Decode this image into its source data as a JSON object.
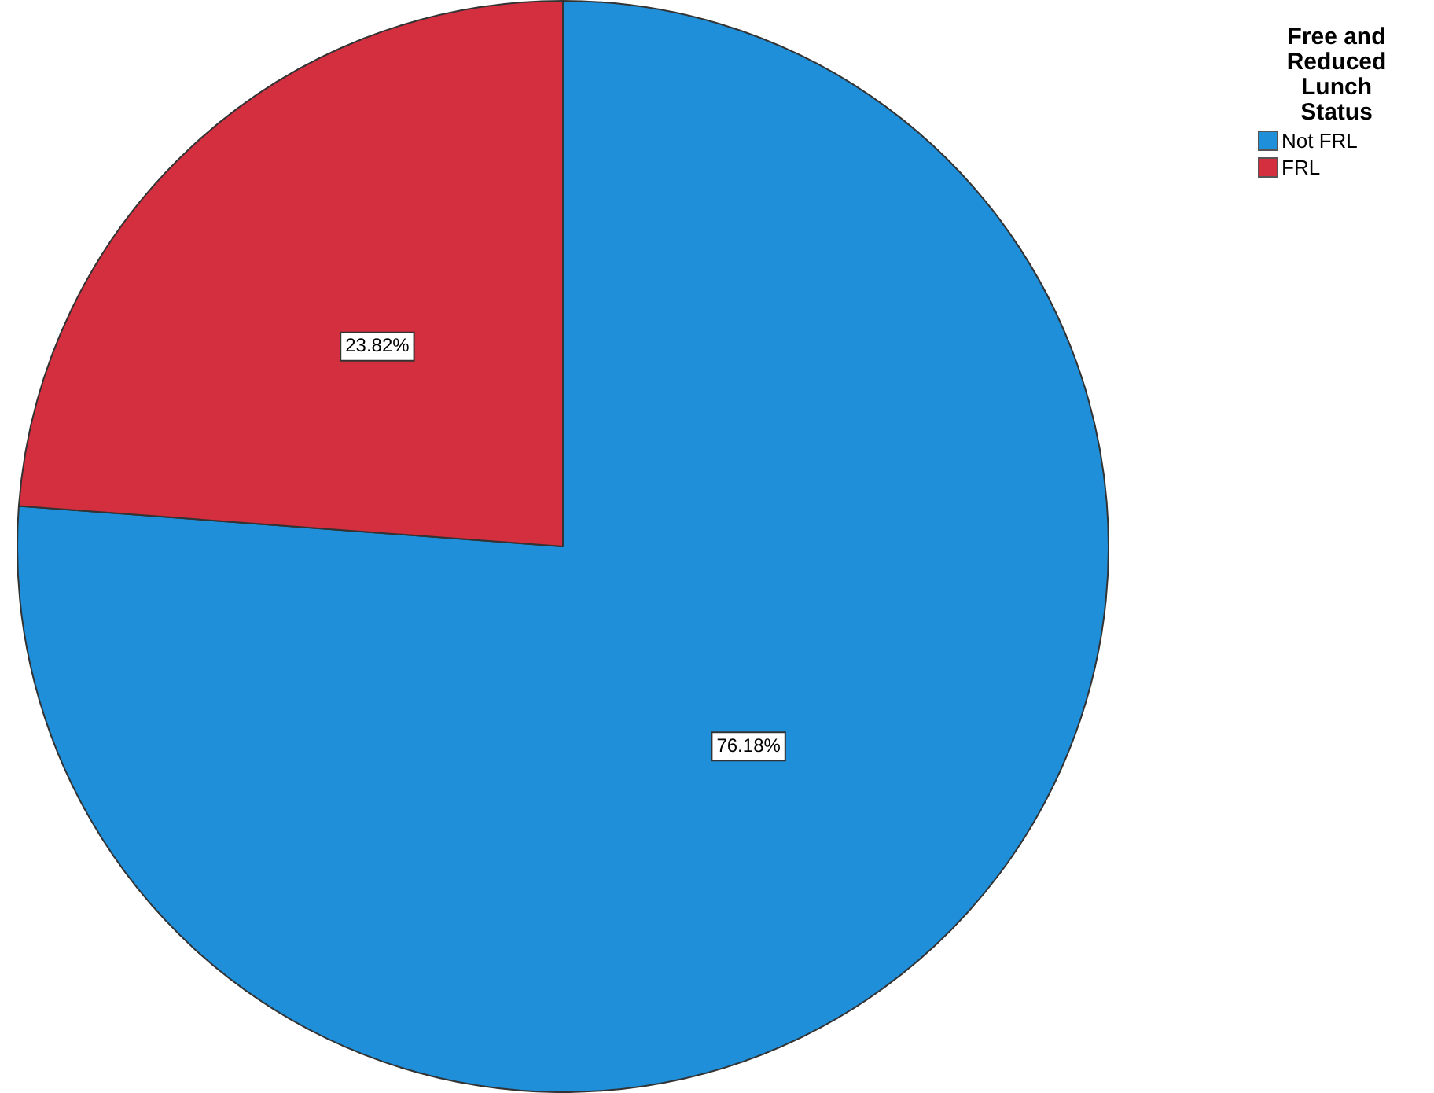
{
  "chart_data": {
    "type": "pie",
    "legend_title": "Free and Reduced Lunch Status",
    "legend": "top right",
    "categories": [
      "Not FRL",
      "FRL"
    ],
    "values": [
      76.18,
      23.82
    ],
    "colors": [
      "#1e8fd8",
      "#d42f3f"
    ],
    "value_labels": [
      "76.18%",
      "23.82%"
    ]
  }
}
